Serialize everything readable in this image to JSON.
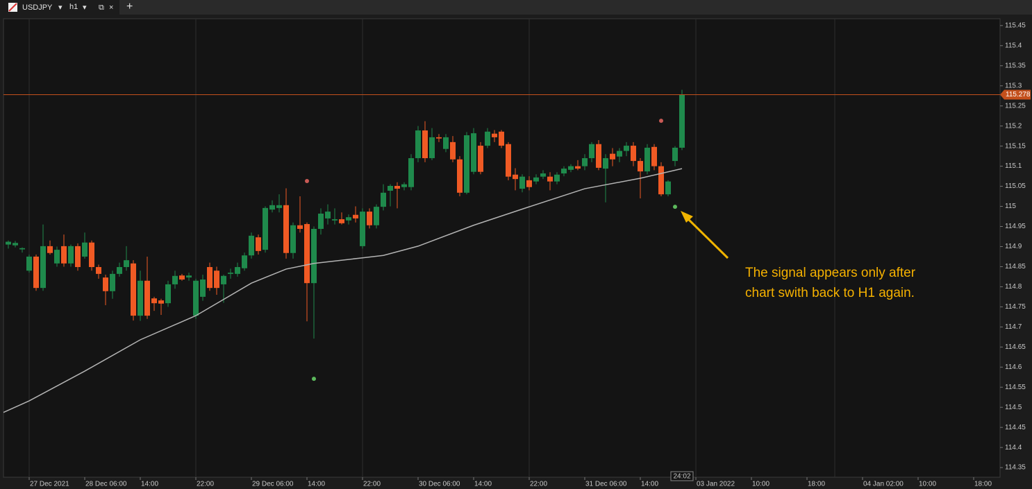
{
  "ui": {
    "symbol": "USDJPY",
    "timeframe": "h1",
    "new_tab": "+"
  },
  "chart_data": {
    "type": "candlestick",
    "up_color": "#1f8a4c",
    "down_color": "#f05a24",
    "x": [
      -3,
      -2,
      -1,
      0,
      1,
      2,
      3,
      4,
      5,
      6,
      7,
      8,
      9,
      10,
      11,
      12,
      13,
      14,
      15,
      16,
      17,
      18,
      19,
      20,
      21,
      22,
      23,
      24,
      25,
      26,
      27,
      28,
      29,
      30,
      31,
      32,
      33,
      34,
      35,
      36,
      37,
      38,
      39,
      40,
      41,
      42,
      43,
      44,
      45,
      46,
      47,
      48,
      49,
      50,
      51,
      52,
      53,
      54,
      55,
      56,
      57,
      58,
      59,
      60,
      61,
      62,
      63,
      64,
      65,
      66,
      67,
      68,
      69,
      70,
      71,
      72,
      73,
      74,
      75,
      76,
      77,
      78,
      79,
      80,
      81,
      82,
      83,
      84,
      85,
      86,
      87,
      88,
      89,
      90,
      91,
      92,
      93,
      94
    ],
    "open": [
      114.905,
      114.903,
      114.893,
      114.84,
      114.875,
      114.797,
      114.901,
      114.858,
      114.901,
      114.858,
      114.901,
      114.875,
      114.91,
      114.849,
      114.823,
      114.789,
      114.832,
      114.849,
      114.858,
      114.728,
      114.815,
      114.771,
      114.766,
      114.759,
      114.806,
      114.828,
      114.823,
      114.728,
      114.775,
      114.849,
      114.84,
      114.806,
      114.832,
      114.832,
      114.846,
      114.878,
      114.923,
      114.892,
      114.992,
      114.996,
      115.003,
      114.884,
      114.953,
      114.956,
      114.809,
      114.944,
      114.97,
      114.965,
      114.968,
      114.965,
      114.979,
      114.901,
      114.987,
      114.953,
      114.999,
      115.039,
      115.051,
      115.048,
      115.048,
      115.12,
      115.189,
      115.12,
      115.172,
      115.143,
      115.16,
      115.117,
      115.034,
      115.086,
      115.151,
      115.151,
      115.181,
      115.186,
      115.155,
      115.079,
      115.044,
      115.065,
      115.062,
      115.074,
      115.074,
      115.062,
      115.082,
      115.091,
      115.1,
      115.1,
      115.12,
      115.155,
      115.094,
      115.131,
      115.124,
      115.138,
      115.151,
      115.113,
      115.087,
      115.148,
      115.1,
      115.03,
      115.113,
      115.146
    ],
    "high": [
      114.915,
      114.914,
      114.898,
      114.88,
      114.88,
      114.955,
      114.915,
      114.9,
      114.93,
      114.905,
      114.908,
      114.935,
      114.915,
      114.855,
      114.83,
      114.84,
      114.86,
      114.901,
      114.866,
      114.84,
      114.875,
      114.775,
      114.77,
      114.815,
      114.84,
      114.832,
      114.835,
      114.82,
      114.83,
      114.86,
      114.85,
      114.83,
      114.845,
      114.86,
      114.885,
      114.935,
      114.93,
      115.0,
      115.015,
      115.03,
      115.045,
      114.96,
      115.025,
      114.96,
      114.95,
      114.995,
      115.005,
      114.995,
      114.985,
      114.98,
      115.0,
      114.995,
      114.995,
      115.005,
      115.055,
      115.055,
      115.06,
      115.06,
      115.13,
      115.2,
      115.212,
      115.195,
      115.18,
      115.18,
      115.175,
      115.125,
      115.185,
      115.195,
      115.16,
      115.195,
      115.19,
      115.19,
      115.16,
      115.095,
      115.08,
      115.075,
      115.08,
      115.09,
      115.085,
      115.085,
      115.1,
      115.105,
      115.115,
      115.13,
      115.16,
      115.165,
      115.13,
      115.145,
      115.145,
      115.16,
      115.16,
      115.12,
      115.155,
      115.155,
      115.11,
      115.065,
      115.15,
      115.29
    ],
    "low": [
      114.895,
      114.898,
      114.885,
      114.835,
      114.79,
      114.79,
      114.88,
      114.85,
      114.85,
      114.85,
      114.84,
      114.87,
      114.84,
      114.82,
      114.754,
      114.77,
      114.825,
      114.84,
      114.716,
      114.715,
      114.72,
      114.74,
      114.73,
      114.75,
      114.795,
      114.815,
      114.815,
      114.72,
      114.765,
      114.79,
      114.78,
      114.76,
      114.82,
      114.825,
      114.84,
      114.87,
      114.88,
      114.885,
      114.985,
      114.985,
      114.87,
      114.87,
      114.935,
      114.714,
      114.671,
      114.93,
      114.955,
      114.955,
      114.955,
      114.955,
      114.96,
      114.895,
      114.945,
      114.945,
      114.99,
      115.0,
      114.995,
      115.04,
      115.04,
      115.11,
      115.11,
      115.115,
      115.16,
      115.135,
      115.11,
      115.025,
      115.03,
      115.08,
      115.08,
      115.145,
      115.16,
      115.145,
      115.065,
      115.04,
      115.035,
      115.04,
      115.055,
      115.068,
      115.04,
      115.055,
      115.075,
      115.085,
      115.09,
      115.09,
      115.11,
      115.09,
      115.01,
      115.1,
      115.11,
      115.125,
      115.1,
      115.02,
      115.08,
      115.09,
      115.025,
      115.025,
      115.1,
      115.14
    ],
    "close": [
      114.912,
      114.909,
      114.896,
      114.875,
      114.797,
      114.901,
      114.884,
      114.892,
      114.858,
      114.901,
      114.849,
      114.91,
      114.849,
      114.832,
      114.789,
      114.832,
      114.849,
      114.866,
      114.728,
      114.815,
      114.728,
      114.759,
      114.758,
      114.806,
      114.827,
      114.818,
      114.828,
      114.815,
      114.818,
      114.797,
      114.797,
      114.827,
      114.835,
      114.849,
      114.878,
      114.927,
      114.889,
      114.996,
      115.003,
      115.003,
      114.884,
      114.953,
      114.944,
      114.809,
      114.944,
      114.982,
      114.987,
      114.968,
      114.958,
      114.973,
      114.97,
      114.987,
      114.953,
      114.999,
      115.034,
      115.051,
      115.044,
      115.055,
      115.12,
      115.189,
      115.12,
      115.172,
      115.169,
      115.172,
      115.117,
      115.034,
      115.177,
      115.182,
      115.086,
      115.186,
      115.172,
      115.151,
      115.074,
      115.068,
      115.074,
      115.048,
      115.072,
      115.082,
      115.062,
      115.079,
      115.094,
      115.1,
      115.094,
      115.12,
      115.155,
      115.096,
      115.12,
      115.117,
      115.138,
      115.151,
      115.113,
      115.087,
      115.146,
      115.1,
      115.03,
      115.062,
      115.146,
      115.278
    ],
    "ma": {
      "color": "#b4b4b4",
      "x": [
        -4,
        0,
        8,
        16,
        24,
        32,
        37,
        41,
        48,
        51,
        56,
        64,
        72,
        80,
        88,
        94
      ],
      "values": [
        114.485,
        114.516,
        114.59,
        114.668,
        114.728,
        114.809,
        114.844,
        114.858,
        114.872,
        114.878,
        114.901,
        114.953,
        114.999,
        115.044,
        115.07,
        115.094
      ]
    },
    "markers": [
      {
        "x": 40,
        "value": 115.063,
        "color": "#c95a55"
      },
      {
        "x": 91,
        "value": 115.213,
        "color": "#c95a55"
      },
      {
        "x": 41,
        "value": 114.571,
        "color": "#5cb85c"
      },
      {
        "x": 93,
        "value": 114.999,
        "color": "#5cb85c"
      }
    ],
    "last_price": 115.278,
    "last_price_color": "#c4501c",
    "countdown": "24:02",
    "separators": [
      0,
      24,
      48,
      72,
      96,
      116
    ],
    "xlim": [
      -3.7,
      139.8
    ],
    "ylim": [
      114.326,
      115.467
    ],
    "yticks": [
      114.35,
      114.4,
      114.45,
      114.5,
      114.55,
      114.6,
      114.65,
      114.7,
      114.75,
      114.8,
      114.85,
      114.9,
      114.95,
      115,
      115.05,
      115.1,
      115.15,
      115.2,
      115.25,
      115.3,
      115.35,
      115.4,
      115.45
    ],
    "xticks": [
      {
        "value": 0,
        "label": "27 Dec 2021"
      },
      {
        "value": 8,
        "label": "28 Dec 06:00"
      },
      {
        "value": 16,
        "label": "14:00"
      },
      {
        "value": 24,
        "label": "22:00"
      },
      {
        "value": 32,
        "label": "29 Dec 06:00"
      },
      {
        "value": 40,
        "label": "14:00"
      },
      {
        "value": 48,
        "label": "22:00"
      },
      {
        "value": 56,
        "label": "30 Dec 06:00"
      },
      {
        "value": 64,
        "label": "14:00"
      },
      {
        "value": 72,
        "label": "22:00"
      },
      {
        "value": 80,
        "label": "31 Dec 06:00"
      },
      {
        "value": 88,
        "label": "14:00"
      },
      {
        "value": 96,
        "label": "03 Jan 2022"
      },
      {
        "value": 104,
        "label": "10:00"
      },
      {
        "value": 112,
        "label": "18:00"
      },
      {
        "value": 120,
        "label": "04 Jan 02:00"
      },
      {
        "value": 128,
        "label": "10:00"
      },
      {
        "value": 136,
        "label": "18:00"
      }
    ],
    "annotation": {
      "lines": [
        "The signal appears only after",
        "chart swith back to H1 again."
      ],
      "color": "#f5b100"
    }
  }
}
